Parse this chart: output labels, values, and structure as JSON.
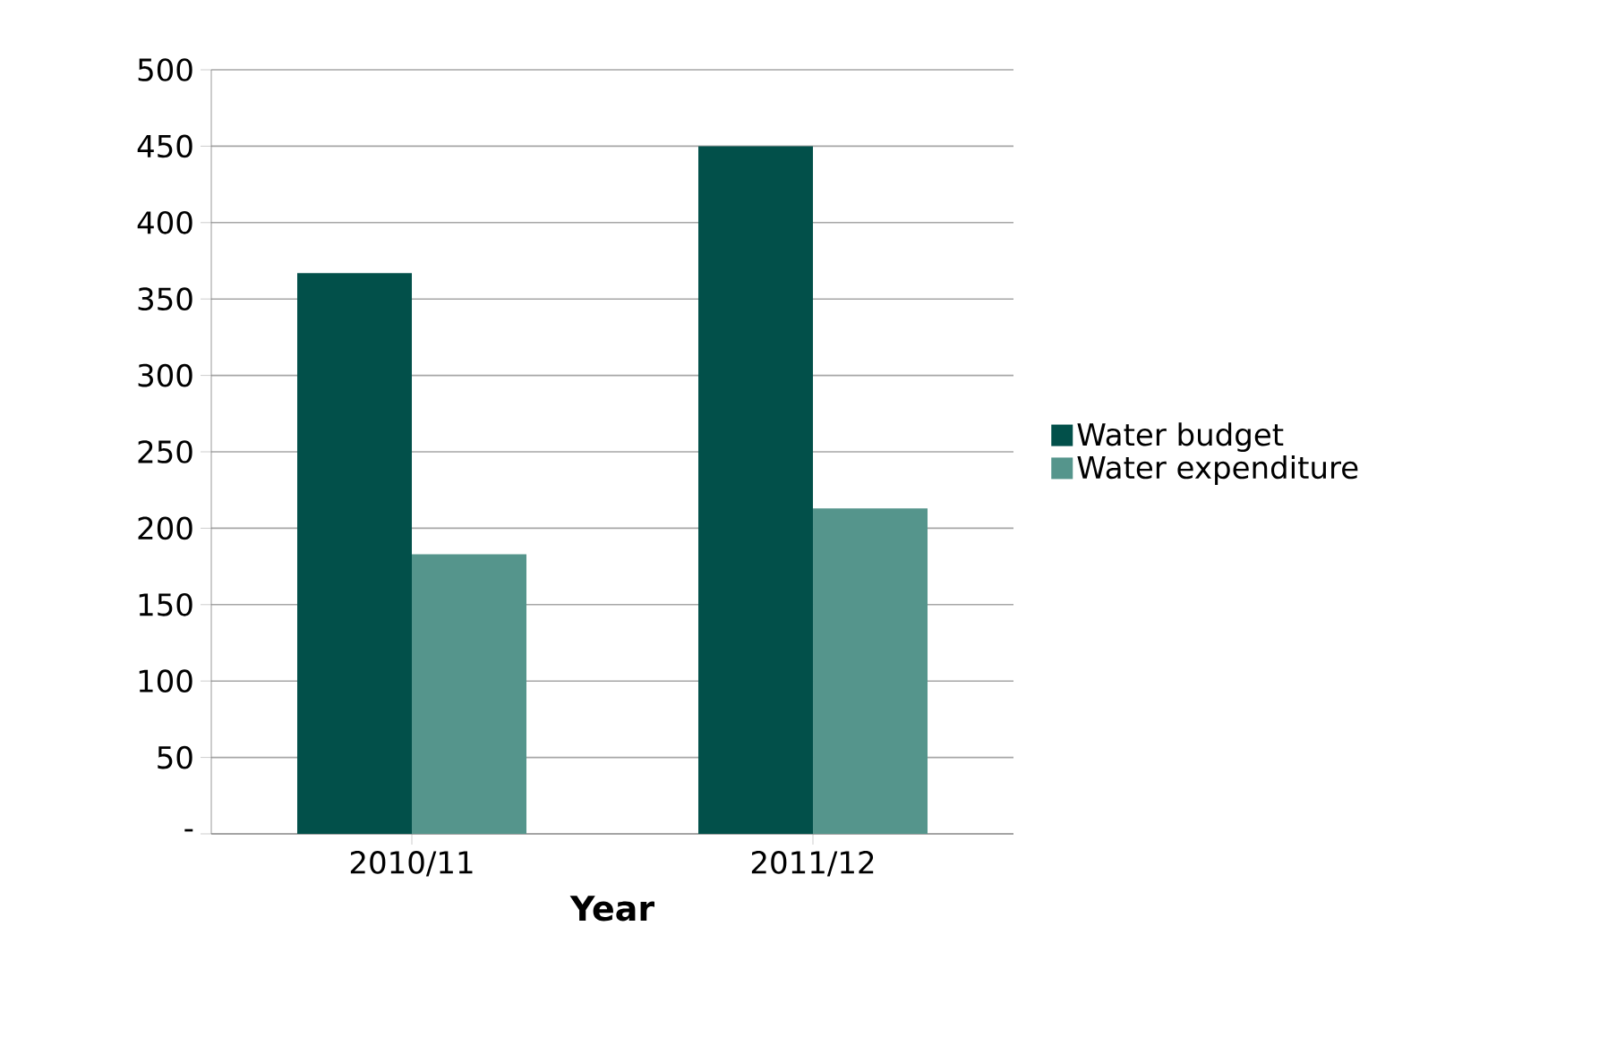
{
  "chart_data": {
    "type": "bar",
    "xlabel": "**Year**",
    "categories": [
      "2010/11",
      "2011/12"
    ],
    "series": [
      {
        "name": "Water budget",
        "color": "#02504a",
        "values": [
          367,
          450
        ]
      },
      {
        "name": "Water expenditure",
        "color": "#55958c",
        "values": [
          183,
          213
        ]
      }
    ],
    "ylim": [
      0,
      500
    ],
    "yticks": [
      {
        "value": 0,
        "label": "-"
      },
      50,
      100,
      150,
      200,
      250,
      300,
      350,
      400,
      450,
      500
    ],
    "grid": "y",
    "legend": "right"
  }
}
